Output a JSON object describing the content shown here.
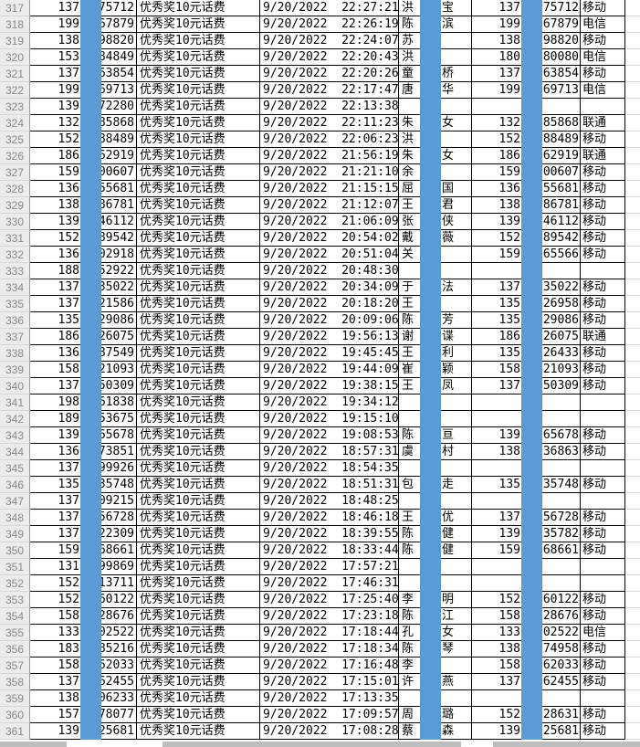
{
  "colors": {
    "redaction_bar": "#5B9BD5",
    "row_header_bg": "#ececec",
    "grid_border": "#000000",
    "faint_gridline": "#d9d9d9",
    "scrollbar_gray": "#bdbdbd"
  },
  "prize_label": "优秀奖10元话费",
  "rows": [
    {
      "n": "317",
      "b": "137",
      "c": "75712",
      "prize": "优秀奖10元话费",
      "dt": "9/20/2022  22:27:21",
      "n1": "洪",
      "n2": "宝",
      "g": "137",
      "h": "75712",
      "op": "移动"
    },
    {
      "n": "318",
      "b": "199",
      "c": "67879",
      "prize": "优秀奖10元话费",
      "dt": "9/20/2022  22:26:19",
      "n1": "陈",
      "n2": "滨",
      "g": "199",
      "h": "67879",
      "op": "电信"
    },
    {
      "n": "319",
      "b": "138",
      "c": "98820",
      "prize": "优秀奖10元话费",
      "dt": "9/20/2022  22:24:07",
      "n1": "苏",
      "n2": "",
      "g": "138",
      "h": "98820",
      "op": "移动"
    },
    {
      "n": "320",
      "b": "153",
      "c": "84849",
      "prize": "优秀奖10元话费",
      "dt": "9/20/2022  22:20:43",
      "n1": "洪",
      "n2": "",
      "g": "180",
      "h": "80080",
      "op": "电信"
    },
    {
      "n": "321",
      "b": "137",
      "c": "63854",
      "prize": "优秀奖10元话费",
      "dt": "9/20/2022  22:20:26",
      "n1": "童",
      "n2": "桥",
      "g": "137",
      "h": "63854",
      "op": "移动"
    },
    {
      "n": "322",
      "b": "199",
      "c": "69713",
      "prize": "优秀奖10元话费",
      "dt": "9/20/2022  22:17:47",
      "n1": "唐",
      "n2": "华",
      "g": "199",
      "h": "69713",
      "op": "电信"
    },
    {
      "n": "323",
      "b": "139",
      "c": "72280",
      "prize": "优秀奖10元话费",
      "dt": "9/20/2022  22:13:38",
      "n1": "",
      "n2": "",
      "g": "",
      "h": "",
      "op": ""
    },
    {
      "n": "324",
      "b": "132",
      "c": "85868",
      "prize": "优秀奖10元话费",
      "dt": "9/20/2022  22:11:23",
      "n1": "朱",
      "n2": "女",
      "g": "132",
      "h": "85868",
      "op": "联通"
    },
    {
      "n": "325",
      "b": "152",
      "c": "88489",
      "prize": "优秀奖10元话费",
      "dt": "9/20/2022  22:06:23",
      "n1": "洪",
      "n2": "",
      "g": "152",
      "h": "88489",
      "op": "移动"
    },
    {
      "n": "326",
      "b": "186",
      "c": "62919",
      "prize": "优秀奖10元话费",
      "dt": "9/20/2022  21:56:19",
      "n1": "朱",
      "n2": "女",
      "g": "186",
      "h": "62919",
      "op": "联通"
    },
    {
      "n": "327",
      "b": "159",
      "c": "00607",
      "prize": "优秀奖10元话费",
      "dt": "9/20/2022  21:21:10",
      "n1": "余",
      "n2": "",
      "g": "159",
      "h": "00607",
      "op": "移动"
    },
    {
      "n": "328",
      "b": "136",
      "c": "55681",
      "prize": "优秀奖10元话费",
      "dt": "9/20/2022  21:15:15",
      "n1": "屈",
      "n2": "国",
      "g": "136",
      "h": "55681",
      "op": "移动"
    },
    {
      "n": "329",
      "b": "138",
      "c": "86781",
      "prize": "优秀奖10元话费",
      "dt": "9/20/2022  21:12:07",
      "n1": "王",
      "n2": "君",
      "g": "138",
      "h": "86781",
      "op": "移动"
    },
    {
      "n": "330",
      "b": "139",
      "c": "46112",
      "prize": "优秀奖10元话费",
      "dt": "9/20/2022  21:06:09",
      "n1": "张",
      "n2": "侠",
      "g": "139",
      "h": "46112",
      "op": "移动"
    },
    {
      "n": "331",
      "b": "152",
      "c": "89542",
      "prize": "优秀奖10元话费",
      "dt": "9/20/2022  20:54:02",
      "n1": "戴",
      "n2": "薇",
      "g": "152",
      "h": "89542",
      "op": "移动"
    },
    {
      "n": "332",
      "b": "136",
      "c": "02918",
      "prize": "优秀奖10元话费",
      "dt": "9/20/2022  20:51:04",
      "n1": "关",
      "n2": "",
      "g": "159",
      "h": "65566",
      "op": "移动"
    },
    {
      "n": "333",
      "b": "188",
      "c": "52922",
      "prize": "优秀奖10元话费",
      "dt": "9/20/2022  20:48:30",
      "n1": "",
      "n2": "",
      "g": "",
      "h": "",
      "op": ""
    },
    {
      "n": "334",
      "b": "137",
      "c": "35022",
      "prize": "优秀奖10元话费",
      "dt": "9/20/2022  20:34:09",
      "n1": "于",
      "n2": "法",
      "g": "137",
      "h": "35022",
      "op": "移动"
    },
    {
      "n": "335",
      "b": "137",
      "c": "21586",
      "prize": "优秀奖10元话费",
      "dt": "9/20/2022  20:18:20",
      "n1": "王",
      "n2": "",
      "g": "135",
      "h": "26958",
      "op": "移动"
    },
    {
      "n": "336",
      "b": "135",
      "c": "29086",
      "prize": "优秀奖10元话费",
      "dt": "9/20/2022  20:09:06",
      "n1": "陈",
      "n2": "芳",
      "g": "135",
      "h": "29086",
      "op": "移动"
    },
    {
      "n": "337",
      "b": "186",
      "c": "26075",
      "prize": "优秀奖10元话费",
      "dt": "9/20/2022  19:56:13",
      "n1": "谢",
      "n2": "谍",
      "g": "186",
      "h": "26075",
      "op": "联通"
    },
    {
      "n": "338",
      "b": "136",
      "c": "87549",
      "prize": "优秀奖10元话费",
      "dt": "9/20/2022  19:45:45",
      "n1": "王",
      "n2": "利",
      "g": "135",
      "h": "26433",
      "op": "移动"
    },
    {
      "n": "339",
      "b": "158",
      "c": "21093",
      "prize": "优秀奖10元话费",
      "dt": "9/20/2022  19:44:09",
      "n1": "崔",
      "n2": "颖",
      "g": "158",
      "h": "21093",
      "op": "移动"
    },
    {
      "n": "340",
      "b": "137",
      "c": "50309",
      "prize": "优秀奖10元话费",
      "dt": "9/20/2022  19:38:15",
      "n1": "王",
      "n2": "凤",
      "g": "137",
      "h": "50309",
      "op": "移动"
    },
    {
      "n": "341",
      "b": "198",
      "c": "61838",
      "prize": "优秀奖10元话费",
      "dt": "9/20/2022  19:34:12",
      "n1": "",
      "n2": "",
      "g": "",
      "h": "",
      "op": ""
    },
    {
      "n": "342",
      "b": "189",
      "c": "53675",
      "prize": "优秀奖10元话费",
      "dt": "9/20/2022  19:15:10",
      "n1": "",
      "n2": "",
      "g": "",
      "h": "",
      "op": ""
    },
    {
      "n": "343",
      "b": "139",
      "c": "65678",
      "prize": "优秀奖10元话费",
      "dt": "9/20/2022  19:08:53",
      "n1": "陈",
      "n2": "亘",
      "g": "139",
      "h": "65678",
      "op": "移动"
    },
    {
      "n": "344",
      "b": "136",
      "c": "73851",
      "prize": "优秀奖10元话费",
      "dt": "9/20/2022  18:57:31",
      "n1": "虞",
      "n2": "村",
      "g": "138",
      "h": "36863",
      "op": "移动"
    },
    {
      "n": "345",
      "b": "137",
      "c": "99926",
      "prize": "优秀奖10元话费",
      "dt": "9/20/2022  18:54:35",
      "n1": "",
      "n2": "",
      "g": "",
      "h": "",
      "op": ""
    },
    {
      "n": "346",
      "b": "135",
      "c": "35748",
      "prize": "优秀奖10元话费",
      "dt": "9/20/2022  18:51:31",
      "n1": "包",
      "n2": "走",
      "g": "135",
      "h": "35748",
      "op": "移动"
    },
    {
      "n": "347",
      "b": "137",
      "c": "09215",
      "prize": "优秀奖10元话费",
      "dt": "9/20/2022  18:48:25",
      "n1": "",
      "n2": "",
      "g": "",
      "h": "",
      "op": ""
    },
    {
      "n": "348",
      "b": "137",
      "c": "56728",
      "prize": "优秀奖10元话费",
      "dt": "9/20/2022  18:46:18",
      "n1": "王",
      "n2": "优",
      "g": "137",
      "h": "56728",
      "op": "移动"
    },
    {
      "n": "349",
      "b": "137",
      "c": "22309",
      "prize": "优秀奖10元话费",
      "dt": "9/20/2022  18:39:55",
      "n1": "陈",
      "n2": "健",
      "g": "139",
      "h": "35782",
      "op": "移动"
    },
    {
      "n": "350",
      "b": "159",
      "c": "68661",
      "prize": "优秀奖10元话费",
      "dt": "9/20/2022  18:33:44",
      "n1": "陈",
      "n2": "健",
      "g": "159",
      "h": "68661",
      "op": "移动"
    },
    {
      "n": "351",
      "b": "131",
      "c": "99869",
      "prize": "优秀奖10元话费",
      "dt": "9/20/2022  17:57:21",
      "n1": "",
      "n2": "",
      "g": "",
      "h": "",
      "op": ""
    },
    {
      "n": "352",
      "b": "152",
      "c": "13711",
      "prize": "优秀奖10元话费",
      "dt": "9/20/2022  17:46:31",
      "n1": "",
      "n2": "",
      "g": "",
      "h": "",
      "op": ""
    },
    {
      "n": "353",
      "b": "152",
      "c": "60122",
      "prize": "优秀奖10元话费",
      "dt": "9/20/2022  17:25:40",
      "n1": "李",
      "n2": "明",
      "g": "152",
      "h": "60122",
      "op": "移动"
    },
    {
      "n": "354",
      "b": "158",
      "c": "28676",
      "prize": "优秀奖10元话费",
      "dt": "9/20/2022  17:23:18",
      "n1": "陈",
      "n2": "江",
      "g": "158",
      "h": "28676",
      "op": "移动"
    },
    {
      "n": "355",
      "b": "133",
      "c": "02522",
      "prize": "优秀奖10元话费",
      "dt": "9/20/2022  17:18:44",
      "n1": "孔",
      "n2": "女",
      "g": "133",
      "h": "02522",
      "op": "电信"
    },
    {
      "n": "356",
      "b": "183",
      "c": "85216",
      "prize": "优秀奖10元话费",
      "dt": "9/20/2022  17:18:34",
      "n1": "陈",
      "n2": "琴",
      "g": "138",
      "h": "74958",
      "op": "移动"
    },
    {
      "n": "357",
      "b": "158",
      "c": "62033",
      "prize": "优秀奖10元话费",
      "dt": "9/20/2022  17:16:48",
      "n1": "李",
      "n2": "",
      "g": "158",
      "h": "62033",
      "op": "移动"
    },
    {
      "n": "358",
      "b": "137",
      "c": "62455",
      "prize": "优秀奖10元话费",
      "dt": "9/20/2022  17:15:01",
      "n1": "许",
      "n2": "燕",
      "g": "137",
      "h": "62455",
      "op": "移动"
    },
    {
      "n": "359",
      "b": "138",
      "c": "06233",
      "prize": "优秀奖10元话费",
      "dt": "9/20/2022  17:13:35",
      "n1": "",
      "n2": "",
      "g": "",
      "h": "",
      "op": ""
    },
    {
      "n": "360",
      "b": "157",
      "c": "78077",
      "prize": "优秀奖10元话费",
      "dt": "9/20/2022  17:09:57",
      "n1": "周",
      "n2": "璐",
      "g": "152",
      "h": "28631",
      "op": "移动"
    },
    {
      "n": "361",
      "b": "139",
      "c": "25681",
      "prize": "优秀奖10元话费",
      "dt": "9/20/2022  17:08:28",
      "n1": "蔡",
      "n2": "森",
      "g": "139",
      "h": "25681",
      "op": "移动"
    }
  ]
}
